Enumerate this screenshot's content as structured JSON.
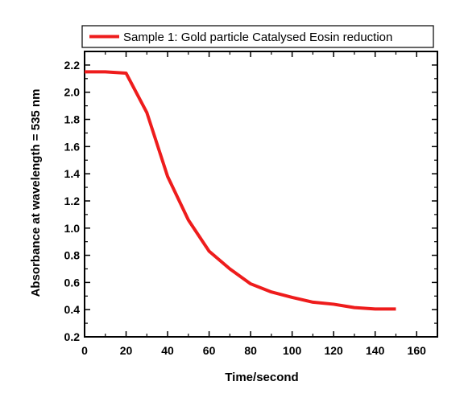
{
  "chart_data": {
    "type": "line",
    "title": "",
    "xlabel": "Time/second",
    "ylabel": "Absorbance at wavelength = 535 nm",
    "xlim": [
      0,
      170
    ],
    "ylim": [
      0.2,
      2.3
    ],
    "xticks": [
      0,
      20,
      40,
      60,
      80,
      100,
      120,
      140,
      160
    ],
    "yticks": [
      0.2,
      0.4,
      0.6,
      0.8,
      1.0,
      1.2,
      1.4,
      1.6,
      1.8,
      2.0,
      2.2
    ],
    "xtick_labels": [
      "0",
      "20",
      "40",
      "60",
      "80",
      "100",
      "120",
      "140",
      "160"
    ],
    "ytick_labels": [
      "0.2",
      "0.4",
      "0.6",
      "0.8",
      "1.0",
      "1.2",
      "1.4",
      "1.6",
      "1.8",
      "2.0",
      "2.2"
    ],
    "grid": false,
    "legend_position": "top",
    "series": [
      {
        "name": "Sample 1: Gold particle Catalysed Eosin reduction",
        "color": "#ee1c1c",
        "x": [
          0,
          10,
          20,
          30,
          40,
          50,
          60,
          70,
          80,
          90,
          100,
          110,
          120,
          130,
          140,
          150
        ],
        "y": [
          2.15,
          2.15,
          2.14,
          1.85,
          1.38,
          1.06,
          0.83,
          0.7,
          0.59,
          0.53,
          0.49,
          0.455,
          0.44,
          0.415,
          0.405,
          0.405
        ]
      }
    ]
  }
}
